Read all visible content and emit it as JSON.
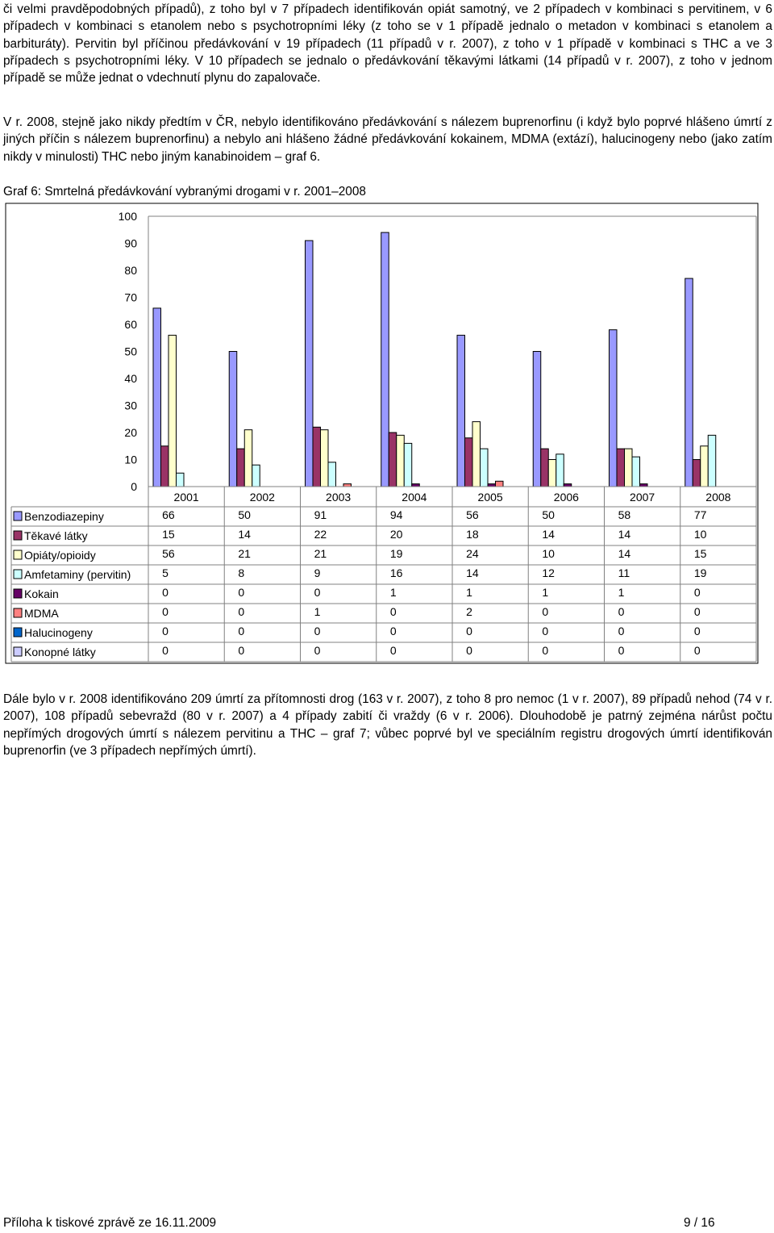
{
  "paragraphs": {
    "p1": "či velmi pravděpodobných případů), z toho byl v 7 případech identifikován opiát samotný, ve 2 případech v kombinaci s pervitinem, v 6 případech v kombinaci s etanolem nebo s psychotropními léky (z toho se v 1 případě jednalo o metadon v kombinaci s etanolem a barbituráty). Pervitin byl příčinou předávkování v 19 případech (11 případů v r. 2007), z toho v 1 případě v kombinaci s THC a ve 3 případech s psychotropními léky. V 10 případech se jednalo o předávkování těkavými látkami (14 případů v r. 2007), z toho v jednom případě se může jednat o vdechnutí plynu do zapalovače.",
    "p2": "V r. 2008, stejně jako nikdy předtím v ČR, nebylo identifikováno předávkování s nálezem buprenorfinu (i když bylo poprvé hlášeno úmrtí z jiných příčin s nálezem buprenorfinu) a nebylo ani hlášeno žádné předávkování kokainem, MDMA (extází), halucinogeny nebo (jako zatím nikdy v minulosti) THC nebo jiným kanabinoidem – graf 6.",
    "caption": "Graf 6: Smrtelná předávkování vybranými drogami v r. 2001–2008",
    "p3": "Dále bylo v r. 2008 identifikováno 209 úmrtí za přítomnosti drog (163 v r. 2007), z toho 8 pro nemoc (1 v r. 2007), 89 případů nehod (74 v r. 2007), 108 případů sebevražd (80 v r. 2007) a 4 případy zabití či vraždy (6 v r. 2006). Dlouhodobě je patrný zejména nárůst počtu nepřímých drogových úmrtí s nálezem pervitinu a THC – graf 7; vůbec poprvé byl ve speciálním registru drogových úmrtí identifikován buprenorfin (ve 3 případech nepřímých úmrtí)."
  },
  "footer": {
    "left": "Příloha k tiskové zprávě ze 16.11.2009",
    "right": "9 / 16"
  },
  "chart_data": {
    "type": "bar",
    "title": "Graf 6: Smrtelná předávkování vybranými drogami v r. 2001–2008",
    "categories": [
      "2001",
      "2002",
      "2003",
      "2004",
      "2005",
      "2006",
      "2007",
      "2008"
    ],
    "ylim": [
      0,
      100
    ],
    "yticks": [
      0,
      10,
      20,
      30,
      40,
      50,
      60,
      70,
      80,
      90,
      100
    ],
    "grid": false,
    "legend": "data-table-left",
    "series": [
      {
        "name": "Benzodiazepiny",
        "color": "#9999FF",
        "values": [
          66,
          50,
          91,
          94,
          56,
          50,
          58,
          77
        ]
      },
      {
        "name": "Těkavé látky",
        "color": "#993366",
        "values": [
          15,
          14,
          22,
          20,
          18,
          14,
          14,
          10
        ]
      },
      {
        "name": "Opiáty/opioidy",
        "color": "#FFFFCC",
        "values": [
          56,
          21,
          21,
          19,
          24,
          10,
          14,
          15
        ]
      },
      {
        "name": "Amfetaminy (pervitin)",
        "color": "#CCFFFF",
        "values": [
          5,
          8,
          9,
          16,
          14,
          12,
          11,
          19
        ]
      },
      {
        "name": "Kokain",
        "color": "#660066",
        "values": [
          0,
          0,
          0,
          1,
          1,
          1,
          1,
          0
        ]
      },
      {
        "name": "MDMA",
        "color": "#FF8080",
        "values": [
          0,
          0,
          1,
          0,
          2,
          0,
          0,
          0
        ]
      },
      {
        "name": "Halucinogeny",
        "color": "#0066CC",
        "values": [
          0,
          0,
          0,
          0,
          0,
          0,
          0,
          0
        ]
      },
      {
        "name": "Konopné látky",
        "color": "#CCCCFF",
        "values": [
          0,
          0,
          0,
          0,
          0,
          0,
          0,
          0
        ]
      }
    ]
  }
}
